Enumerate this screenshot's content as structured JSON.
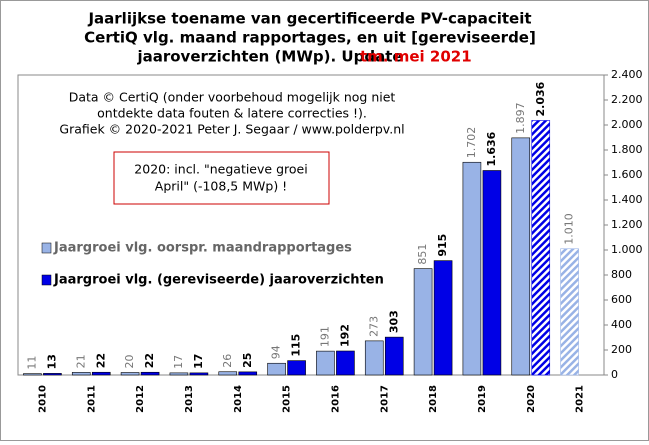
{
  "chart_data": {
    "type": "bar",
    "title_lines": [
      "Jaarlijkse  toename van gecertificeerde PV-capaciteit",
      "CertiQ vlg. maand rapportages, en uit [gereviseerde]",
      "jaaroverzichten (MWp). Update"
    ],
    "title_highlight": "tm. mei 2021",
    "source_lines": [
      "Data © CertiQ (onder voorbehoud mogelijk  nog niet",
      "ontdekte data fouten & latere correcties !).",
      "Grafiek  © 2020-2021 Peter J. Segaar / www.polderpv.nl"
    ],
    "note_lines": [
      "2020: incl. \"negatieve groei",
      "April\"  (-108,5 MWp) !"
    ],
    "categories": [
      "2010",
      "2011",
      "2012",
      "2013",
      "2014",
      "2015",
      "2016",
      "2017",
      "2018",
      "2019",
      "2020",
      "2021"
    ],
    "series": [
      {
        "name": "Jaargroei vlg. oorspr. maandrapportages",
        "color": "#99b3e6",
        "values": [
          11,
          21,
          20,
          17,
          26,
          94,
          191,
          273,
          851,
          1702,
          1897,
          1010
        ],
        "value_labels": [
          "11",
          "21",
          "20",
          "17",
          "26",
          "94",
          "191",
          "273",
          "851",
          "1.702",
          "1.897",
          "1.010"
        ]
      },
      {
        "name": "Jaargroei vlg. (gereviseerde) jaaroverzichten",
        "color": "#0000e6",
        "values": [
          13,
          22,
          22,
          17,
          25,
          115,
          192,
          303,
          915,
          1636,
          2036,
          null
        ],
        "value_labels": [
          "13",
          "22",
          "22",
          "17",
          "25",
          "115",
          "192",
          "303",
          "915",
          "1.636",
          "2.036",
          null
        ]
      }
    ],
    "ylim": [
      0,
      2400
    ],
    "yticks": [
      0,
      {
        "value": 200,
        "label": "200"
      },
      400,
      600,
      800,
      {
        "value": 1000,
        "label": "1.000"
      },
      {
        "value": 1200,
        "label": "1.200"
      },
      {
        "value": 1400,
        "label": "1.400"
      },
      {
        "value": 1600,
        "label": "1.600"
      },
      {
        "value": 1800,
        "label": "1.800"
      },
      {
        "value": 2000,
        "label": "2.000"
      },
      {
        "value": 2200,
        "label": "2.200"
      },
      {
        "value": 2400,
        "label": "2.400"
      }
    ],
    "grid": false
  }
}
